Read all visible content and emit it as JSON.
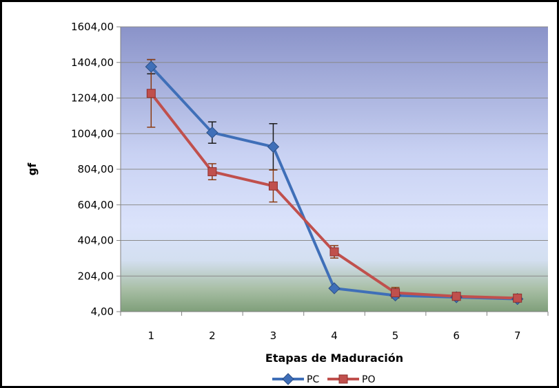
{
  "chart_data": {
    "type": "line",
    "title": "",
    "xlabel": "Etapas de Maduración",
    "ylabel": "gf",
    "categories": [
      "1",
      "2",
      "3",
      "4",
      "5",
      "6",
      "7"
    ],
    "yticks": [
      "4,00",
      "204,00",
      "404,00",
      "604,00",
      "804,00",
      "1004,00",
      "1204,00",
      "1404,00",
      "1604,00"
    ],
    "ylim": [
      4,
      1604
    ],
    "grid": true,
    "legend_position": "bottom",
    "series": [
      {
        "name": "PC",
        "color": "#3f6fb8",
        "marker": "diamond",
        "values": [
          1380,
          1010,
          930,
          135,
          95,
          85,
          75
        ],
        "error": [
          40,
          60,
          130,
          0,
          0,
          0,
          0
        ]
      },
      {
        "name": "PO",
        "color": "#c0504d",
        "marker": "square",
        "values": [
          1230,
          790,
          710,
          340,
          110,
          90,
          80
        ],
        "error": [
          190,
          45,
          90,
          35,
          30,
          0,
          0
        ]
      }
    ]
  }
}
